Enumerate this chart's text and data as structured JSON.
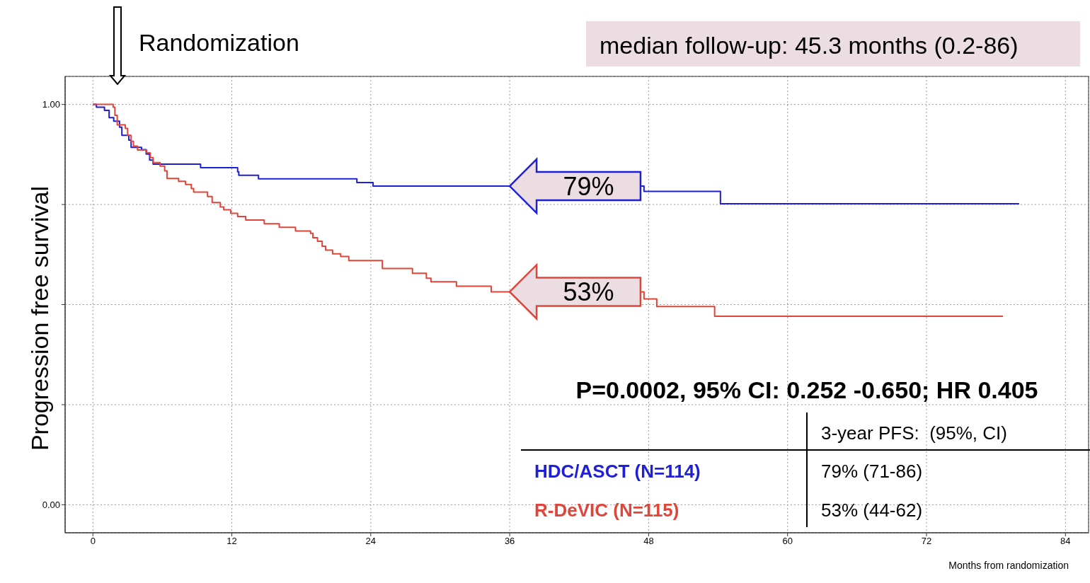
{
  "chart_data": {
    "type": "step",
    "xlabel": "Months from randomization",
    "ylabel": "Progression free survival",
    "xlim": [
      -2.4,
      86
    ],
    "xticks": [
      0,
      12,
      24,
      36,
      48,
      60,
      72,
      84
    ],
    "ylim": [
      -0.07,
      1.07
    ],
    "yticks": [
      {
        "value": 0,
        "label": "0.00"
      },
      {
        "value": 0.25,
        "label": null
      },
      {
        "value": 0.5,
        "label": null
      },
      {
        "value": 0.75,
        "label": null
      },
      {
        "value": 1,
        "label": "1.00"
      }
    ],
    "grid": true,
    "line_style": "solid",
    "series": [
      {
        "name": "HDC/ASCT (N=114)",
        "color": "#1f1fd6",
        "x": [
          0,
          0.3,
          1.0,
          1.4,
          1.8,
          2.3,
          2.5,
          3.1,
          3.3,
          4.2,
          4.6,
          4.9,
          5.2,
          9.3,
          12.5,
          12.6,
          14.3,
          22.8,
          24.2,
          47.6,
          54.2,
          80.0
        ],
        "values": [
          1.0,
          0.993,
          0.985,
          0.967,
          0.958,
          0.943,
          0.923,
          0.911,
          0.893,
          0.887,
          0.876,
          0.861,
          0.851,
          0.842,
          0.832,
          0.823,
          0.814,
          0.805,
          0.796,
          0.783,
          0.752,
          0.752
        ]
      },
      {
        "name": "R-DeVIC (N=115)",
        "color": "#e0453a",
        "x": [
          0,
          1.6,
          1.75,
          1.9,
          2.1,
          2.8,
          3.0,
          3.3,
          3.5,
          3.85,
          4.65,
          4.96,
          5.2,
          5.8,
          6.2,
          6.4,
          7.4,
          8.0,
          8.5,
          8.7,
          9.9,
          10.3,
          11.0,
          11.3,
          11.9,
          12.5,
          13.2,
          14.8,
          16.1,
          17.5,
          18.8,
          19.0,
          19.4,
          19.8,
          20.1,
          20.7,
          21.4,
          22.1,
          25.0,
          27.6,
          28.8,
          29.2,
          31.4,
          34.4,
          47.6,
          48.7,
          53.7,
          78.6
        ],
        "values": [
          1.0,
          1.0,
          0.993,
          0.973,
          0.949,
          0.94,
          0.923,
          0.908,
          0.896,
          0.886,
          0.879,
          0.867,
          0.855,
          0.846,
          0.834,
          0.815,
          0.808,
          0.8,
          0.79,
          0.781,
          0.77,
          0.755,
          0.744,
          0.737,
          0.728,
          0.72,
          0.711,
          0.702,
          0.693,
          0.684,
          0.678,
          0.667,
          0.658,
          0.646,
          0.636,
          0.627,
          0.62,
          0.61,
          0.59,
          0.578,
          0.566,
          0.557,
          0.546,
          0.532,
          0.514,
          0.495,
          0.471,
          0.471
        ]
      }
    ],
    "annotations": [
      "Randomization",
      "median follow-up: 45.3 months (0.2-86)",
      {
        "text": "79%",
        "x": 36,
        "y": 0.796
      },
      {
        "text": "53%",
        "x": 36,
        "y": 0.532
      },
      "P=0.0002, 95% CI: 0.252 -0.650; HR 0.405",
      "3-year PFS:  (95%, CI)",
      "79% (71-86)",
      "53% (44-62)"
    ]
  }
}
